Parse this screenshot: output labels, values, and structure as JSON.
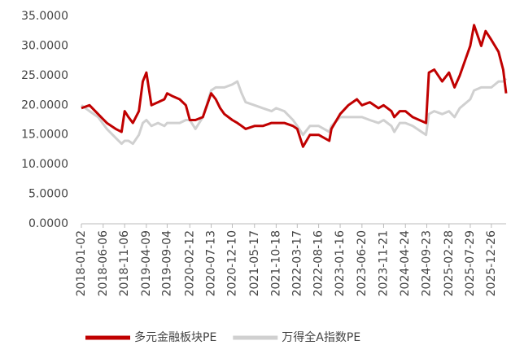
{
  "chart_data": {
    "type": "line",
    "x": [
      "2018-01-02",
      "2018-03-01",
      "2018-05-01",
      "2018-07-02",
      "2018-09-03",
      "2018-10-15",
      "2018-11-06",
      "2018-12-03",
      "2019-01-03",
      "2019-02-15",
      "2019-03-15",
      "2019-04-09",
      "2019-05-15",
      "2019-07-01",
      "2019-08-15",
      "2019-09-04",
      "2019-10-15",
      "2019-12-02",
      "2020-01-15",
      "2020-02-12",
      "2020-03-23",
      "2020-05-15",
      "2020-07-13",
      "2020-08-15",
      "2020-09-15",
      "2020-10-15",
      "2020-12-10",
      "2021-01-15",
      "2021-02-15",
      "2021-03-15",
      "2021-05-17",
      "2021-07-15",
      "2021-09-15",
      "2021-10-18",
      "2021-12-15",
      "2022-02-15",
      "2022-03-17",
      "2022-04-27",
      "2022-06-15",
      "2022-08-16",
      "2022-10-31",
      "2022-11-15",
      "2023-01-16",
      "2023-03-15",
      "2023-05-15",
      "2023-06-20",
      "2023-08-15",
      "2023-10-15",
      "2023-11-21",
      "2024-01-15",
      "2024-02-05",
      "2024-03-15",
      "2024-04-24",
      "2024-06-15",
      "2024-09-18",
      "2024-10-08",
      "2024-11-15",
      "2025-01-10",
      "2025-02-28",
      "2025-04-08",
      "2025-05-15",
      "2025-07-29",
      "2025-08-25",
      "2025-10-15",
      "2025-11-15",
      "2025-12-26",
      "2026-02-15",
      "2026-03-20",
      "2026-04-10"
    ],
    "series": [
      {
        "name": "多元金融板块PE",
        "color": "#c00000",
        "values": [
          19.5,
          20,
          18.5,
          17,
          16,
          15.5,
          19,
          18,
          17,
          19,
          24,
          25.5,
          20,
          20.5,
          21,
          22,
          21.5,
          21,
          20,
          17.5,
          17.5,
          18,
          22,
          21,
          19.5,
          18.5,
          17.5,
          17,
          16.5,
          16,
          16.5,
          16.5,
          17,
          17,
          17,
          16.5,
          16,
          13,
          15,
          15,
          14,
          16,
          18.5,
          20,
          21,
          20,
          20.5,
          19.5,
          20,
          19,
          18,
          19,
          19,
          18,
          17,
          25.5,
          26,
          24,
          25.5,
          23,
          25,
          30,
          33.5,
          30,
          32.5,
          31,
          29,
          26,
          22
        ]
      },
      {
        "name": "万得全A指数PE",
        "color": "#d0d0d0",
        "values": [
          20,
          19,
          18,
          16,
          14.5,
          13.5,
          14,
          14,
          13.5,
          15,
          17,
          17.5,
          16.5,
          17,
          16.5,
          17,
          17,
          17,
          17.5,
          17.5,
          16,
          18,
          22.5,
          23,
          23,
          23,
          23.5,
          24,
          22,
          20.5,
          20,
          19.5,
          19,
          19.5,
          19,
          17.5,
          16.5,
          15,
          16.5,
          16.5,
          15.5,
          16.5,
          18,
          18,
          18,
          18,
          17.5,
          17,
          17.5,
          16.5,
          15.5,
          17,
          17,
          16.5,
          15,
          18.5,
          19,
          18.5,
          19,
          18,
          19.5,
          21,
          22.5,
          23,
          23,
          23,
          24,
          24,
          24.5
        ]
      }
    ],
    "xlim": [
      "2018-01-02",
      "2026-04-10"
    ],
    "xticks": [
      "2018-01-02",
      "2018-06-06",
      "2018-11-06",
      "2019-04-09",
      "2019-09-04",
      "2020-02-12",
      "2020-07-13",
      "2020-12-10",
      "2021-05-17",
      "2021-10-18",
      "2022-03-17",
      "2022-08-16",
      "2023-01-16",
      "2023-06-20",
      "2023-11-21",
      "2024-04-24",
      "2024-09-23",
      "2025-02-28",
      "2025-07-29",
      "2025-12-26"
    ],
    "ylim": [
      0,
      35
    ],
    "yticks": [
      {
        "value": 0,
        "label": "0.0000"
      },
      {
        "value": 5,
        "label": "5.0000"
      },
      {
        "value": 10,
        "label": "10.0000"
      },
      {
        "value": 15,
        "label": "15.0000"
      },
      {
        "value": 20,
        "label": "20.0000"
      },
      {
        "value": 25,
        "label": "25.0000"
      },
      {
        "value": 30,
        "label": "30.0000"
      },
      {
        "value": 35,
        "label": "35.0000"
      }
    ],
    "legend": "bottom"
  }
}
